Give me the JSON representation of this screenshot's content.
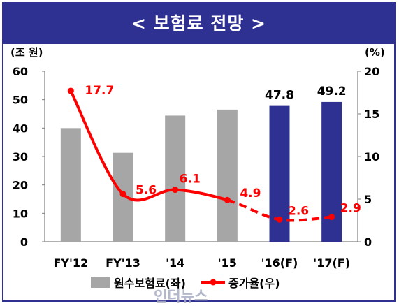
{
  "title": "< 보험료 전망 >",
  "watermark": "인더뉴스",
  "chart_data": {
    "type": "bar+line",
    "categories": [
      "FY'12",
      "FY'13",
      "'14",
      "'15",
      "'16(F)",
      "'17(F)"
    ],
    "left_axis": {
      "unit": "(조 원)",
      "ylim": [
        0,
        60
      ],
      "ticks": [
        0,
        10,
        20,
        30,
        40,
        50,
        60
      ]
    },
    "right_axis": {
      "unit": "(%)",
      "ylim": [
        0,
        20
      ],
      "ticks": [
        0,
        5,
        10,
        15,
        20
      ]
    },
    "series": [
      {
        "name": "원수보험료(좌)",
        "type": "bar",
        "axis": "left",
        "values": [
          40.0,
          31.3,
          44.4,
          46.5,
          47.8,
          49.2
        ],
        "colors": [
          "#a6a6a6",
          "#a6a6a6",
          "#a6a6a6",
          "#a6a6a6",
          "#2e3192",
          "#2e3192"
        ],
        "labels": [
          "",
          "",
          "",
          "",
          "47.8",
          "49.2"
        ],
        "forecast": [
          false,
          false,
          false,
          false,
          true,
          true
        ]
      },
      {
        "name": "증가율(우)",
        "type": "line",
        "axis": "right",
        "color": "#ff0000",
        "values": [
          17.7,
          5.6,
          6.1,
          4.9,
          2.6,
          2.9
        ],
        "labels": [
          "17.7",
          "5.6",
          "6.1",
          "4.9",
          "2.6",
          "2.9"
        ],
        "dashed_from_index": 3
      }
    ],
    "legend": "bottom",
    "grid": false
  }
}
